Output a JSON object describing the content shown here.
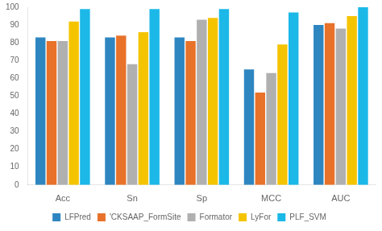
{
  "chart_data": {
    "type": "bar",
    "categories": [
      "Acc",
      "Sn",
      "Sp",
      "MCC",
      "AUC"
    ],
    "series": [
      {
        "name": "LFPred",
        "color": "#2E86C1",
        "values": [
          83,
          83,
          83,
          65,
          90
        ]
      },
      {
        "name": "'CKSAAP_FormSite",
        "color": "#E8722A",
        "values": [
          81,
          84,
          81,
          52,
          91
        ]
      },
      {
        "name": "Formator",
        "color": "#B0B0B0",
        "values": [
          81,
          68,
          93,
          63,
          88
        ]
      },
      {
        "name": "LyFor",
        "color": "#F5C400",
        "values": [
          92,
          86,
          94,
          79,
          95
        ]
      },
      {
        "name": "PLF_SVM",
        "color": "#1BB8E8",
        "values": [
          99,
          99,
          99,
          97,
          100
        ]
      }
    ],
    "ylim": [
      0,
      100
    ],
    "yticks": [
      0,
      10,
      20,
      30,
      40,
      50,
      60,
      70,
      80,
      90,
      100
    ],
    "grid": false,
    "legend": "bottom"
  }
}
